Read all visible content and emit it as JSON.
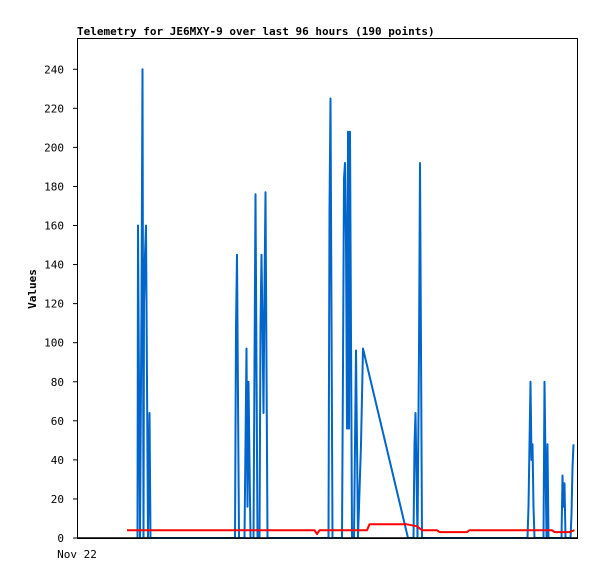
{
  "chart_data": {
    "type": "line",
    "title": "Telemetry for JE6MXY-9 over last 96 hours (190 points)",
    "ylabel": "Values",
    "xlabel": "",
    "x_tick_labels": [
      "Nov 22"
    ],
    "ylim": [
      0,
      256
    ],
    "y_ticks": [
      0,
      20,
      40,
      60,
      80,
      100,
      120,
      140,
      160,
      180,
      200,
      220,
      240
    ],
    "x_range": [
      0,
      100
    ],
    "grid": false,
    "colors": {
      "series_1": "#0066cc",
      "series_2": "#ff0000",
      "series_3": "#000000"
    },
    "series": [
      {
        "values": [
          [
            12.1,
            0
          ],
          [
            12.2,
            160
          ],
          [
            12.4,
            80
          ],
          [
            12.6,
            0
          ],
          [
            12.9,
            120
          ],
          [
            13.1,
            240
          ],
          [
            13.3,
            0
          ],
          [
            13.4,
            120
          ],
          [
            13.6,
            145
          ],
          [
            13.8,
            160
          ],
          [
            14.0,
            80
          ],
          [
            14.2,
            0
          ],
          [
            14.5,
            64
          ],
          [
            14.7,
            0
          ],
          [
            31.6,
            0
          ],
          [
            31.8,
            108
          ],
          [
            32.0,
            145
          ],
          [
            32.2,
            72
          ],
          [
            32.4,
            0
          ],
          [
            33.5,
            0
          ],
          [
            33.7,
            48
          ],
          [
            33.9,
            97
          ],
          [
            34.1,
            16
          ],
          [
            34.3,
            80
          ],
          [
            34.5,
            40
          ],
          [
            34.7,
            0
          ],
          [
            35.3,
            0
          ],
          [
            35.5,
            88
          ],
          [
            35.7,
            176
          ],
          [
            35.9,
            88
          ],
          [
            36.1,
            0
          ],
          [
            36.5,
            0
          ],
          [
            36.7,
            108
          ],
          [
            36.9,
            145
          ],
          [
            37.1,
            108
          ],
          [
            37.3,
            64
          ],
          [
            37.5,
            128
          ],
          [
            37.7,
            177
          ],
          [
            37.9,
            88
          ],
          [
            38.1,
            0
          ],
          [
            50.3,
            0
          ],
          [
            50.5,
            168
          ],
          [
            50.7,
            225
          ],
          [
            50.9,
            112
          ],
          [
            51.1,
            0
          ],
          [
            53.0,
            0
          ],
          [
            53.2,
            88
          ],
          [
            53.4,
            184
          ],
          [
            53.6,
            192
          ],
          [
            53.8,
            152
          ],
          [
            54.0,
            56
          ],
          [
            54.2,
            208
          ],
          [
            54.4,
            56
          ],
          [
            54.6,
            208
          ],
          [
            54.8,
            104
          ],
          [
            55.0,
            0
          ],
          [
            55.4,
            0
          ],
          [
            55.6,
            48
          ],
          [
            55.8,
            96
          ],
          [
            56.0,
            48
          ],
          [
            56.2,
            0
          ],
          [
            56.8,
            48
          ],
          [
            57.2,
            97
          ],
          [
            66.2,
            0
          ],
          [
            67.3,
            0
          ],
          [
            67.5,
            48
          ],
          [
            67.7,
            64
          ],
          [
            67.9,
            32
          ],
          [
            68.1,
            0
          ],
          [
            68.4,
            96
          ],
          [
            68.6,
            192
          ],
          [
            68.8,
            96
          ],
          [
            69.0,
            0
          ],
          [
            90.1,
            0
          ],
          [
            90.3,
            16
          ],
          [
            90.5,
            48
          ],
          [
            90.7,
            80
          ],
          [
            90.9,
            40
          ],
          [
            91.1,
            48
          ],
          [
            91.3,
            16
          ],
          [
            91.5,
            0
          ],
          [
            93.3,
            0
          ],
          [
            93.5,
            80
          ],
          [
            93.7,
            40
          ],
          [
            93.9,
            0
          ],
          [
            94.1,
            48
          ],
          [
            94.3,
            0
          ],
          [
            96.9,
            0
          ],
          [
            97.1,
            32
          ],
          [
            97.3,
            16
          ],
          [
            97.5,
            28
          ],
          [
            97.7,
            0
          ],
          [
            98.7,
            0
          ],
          [
            98.9,
            12
          ],
          [
            99.1,
            36
          ],
          [
            99.3,
            48
          ]
        ]
      },
      {
        "values": [
          [
            10.0,
            4
          ],
          [
            47.5,
            4
          ],
          [
            48.0,
            2
          ],
          [
            48.5,
            4
          ],
          [
            58.0,
            4
          ],
          [
            58.5,
            7
          ],
          [
            66.0,
            7
          ],
          [
            68.0,
            6
          ],
          [
            69.0,
            4
          ],
          [
            72.0,
            4
          ],
          [
            72.5,
            3
          ],
          [
            78.0,
            3
          ],
          [
            78.5,
            4
          ],
          [
            95.0,
            4
          ],
          [
            95.5,
            3
          ],
          [
            98.5,
            3
          ],
          [
            99.5,
            4
          ]
        ]
      },
      {
        "values": [
          [
            0,
            0
          ],
          [
            100,
            0
          ]
        ]
      }
    ]
  }
}
